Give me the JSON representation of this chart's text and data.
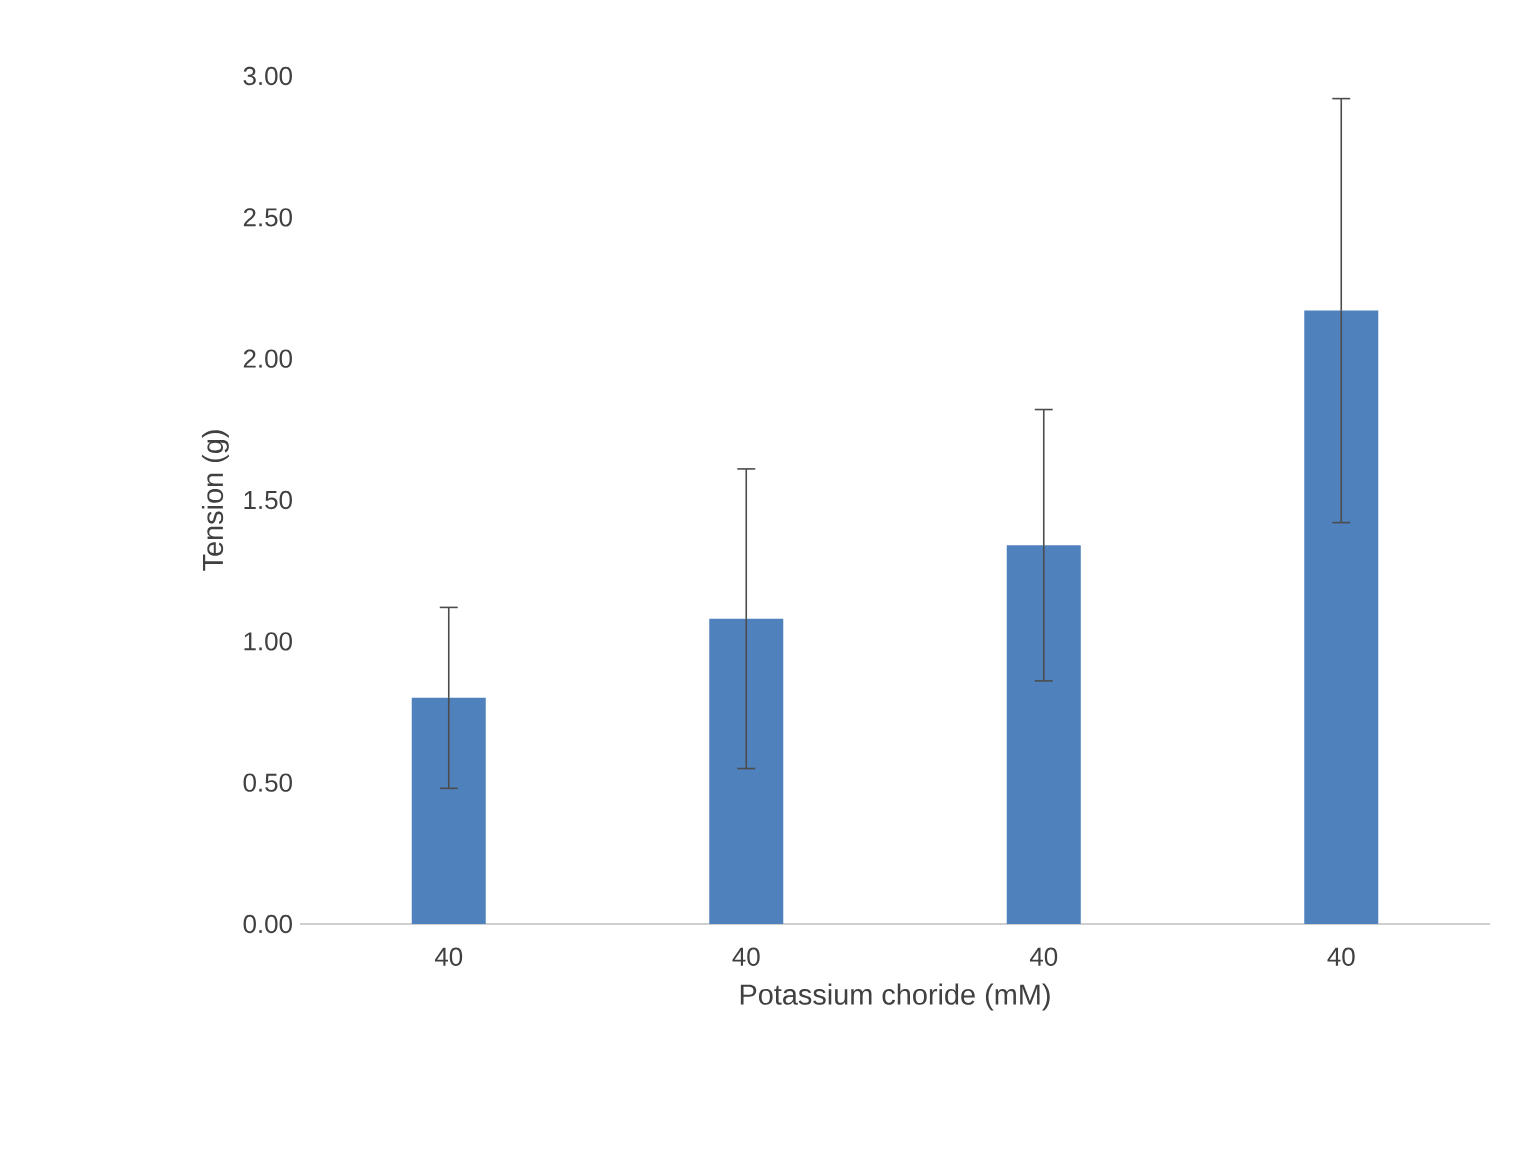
{
  "chart_data": {
    "type": "bar",
    "xlabel": "Potassium choride (mM)",
    "ylabel": "Tension (g)",
    "categories": [
      "40",
      "40",
      "40",
      "40"
    ],
    "values": [
      0.8,
      1.08,
      1.34,
      2.17
    ],
    "errors": [
      0.32,
      0.53,
      0.48,
      0.75
    ],
    "color": "#4f81bd",
    "ylim": [
      0,
      3
    ],
    "yticks": [
      {
        "value": 0,
        "label": "0.00"
      },
      {
        "value": 0.5,
        "label": "0.50"
      },
      {
        "value": 1,
        "label": "1.00"
      },
      {
        "value": 1.5,
        "label": "1.50"
      },
      {
        "value": 2,
        "label": "2.00"
      },
      {
        "value": 2.5,
        "label": "2.50"
      },
      {
        "value": 3,
        "label": "3.00"
      }
    ]
  }
}
